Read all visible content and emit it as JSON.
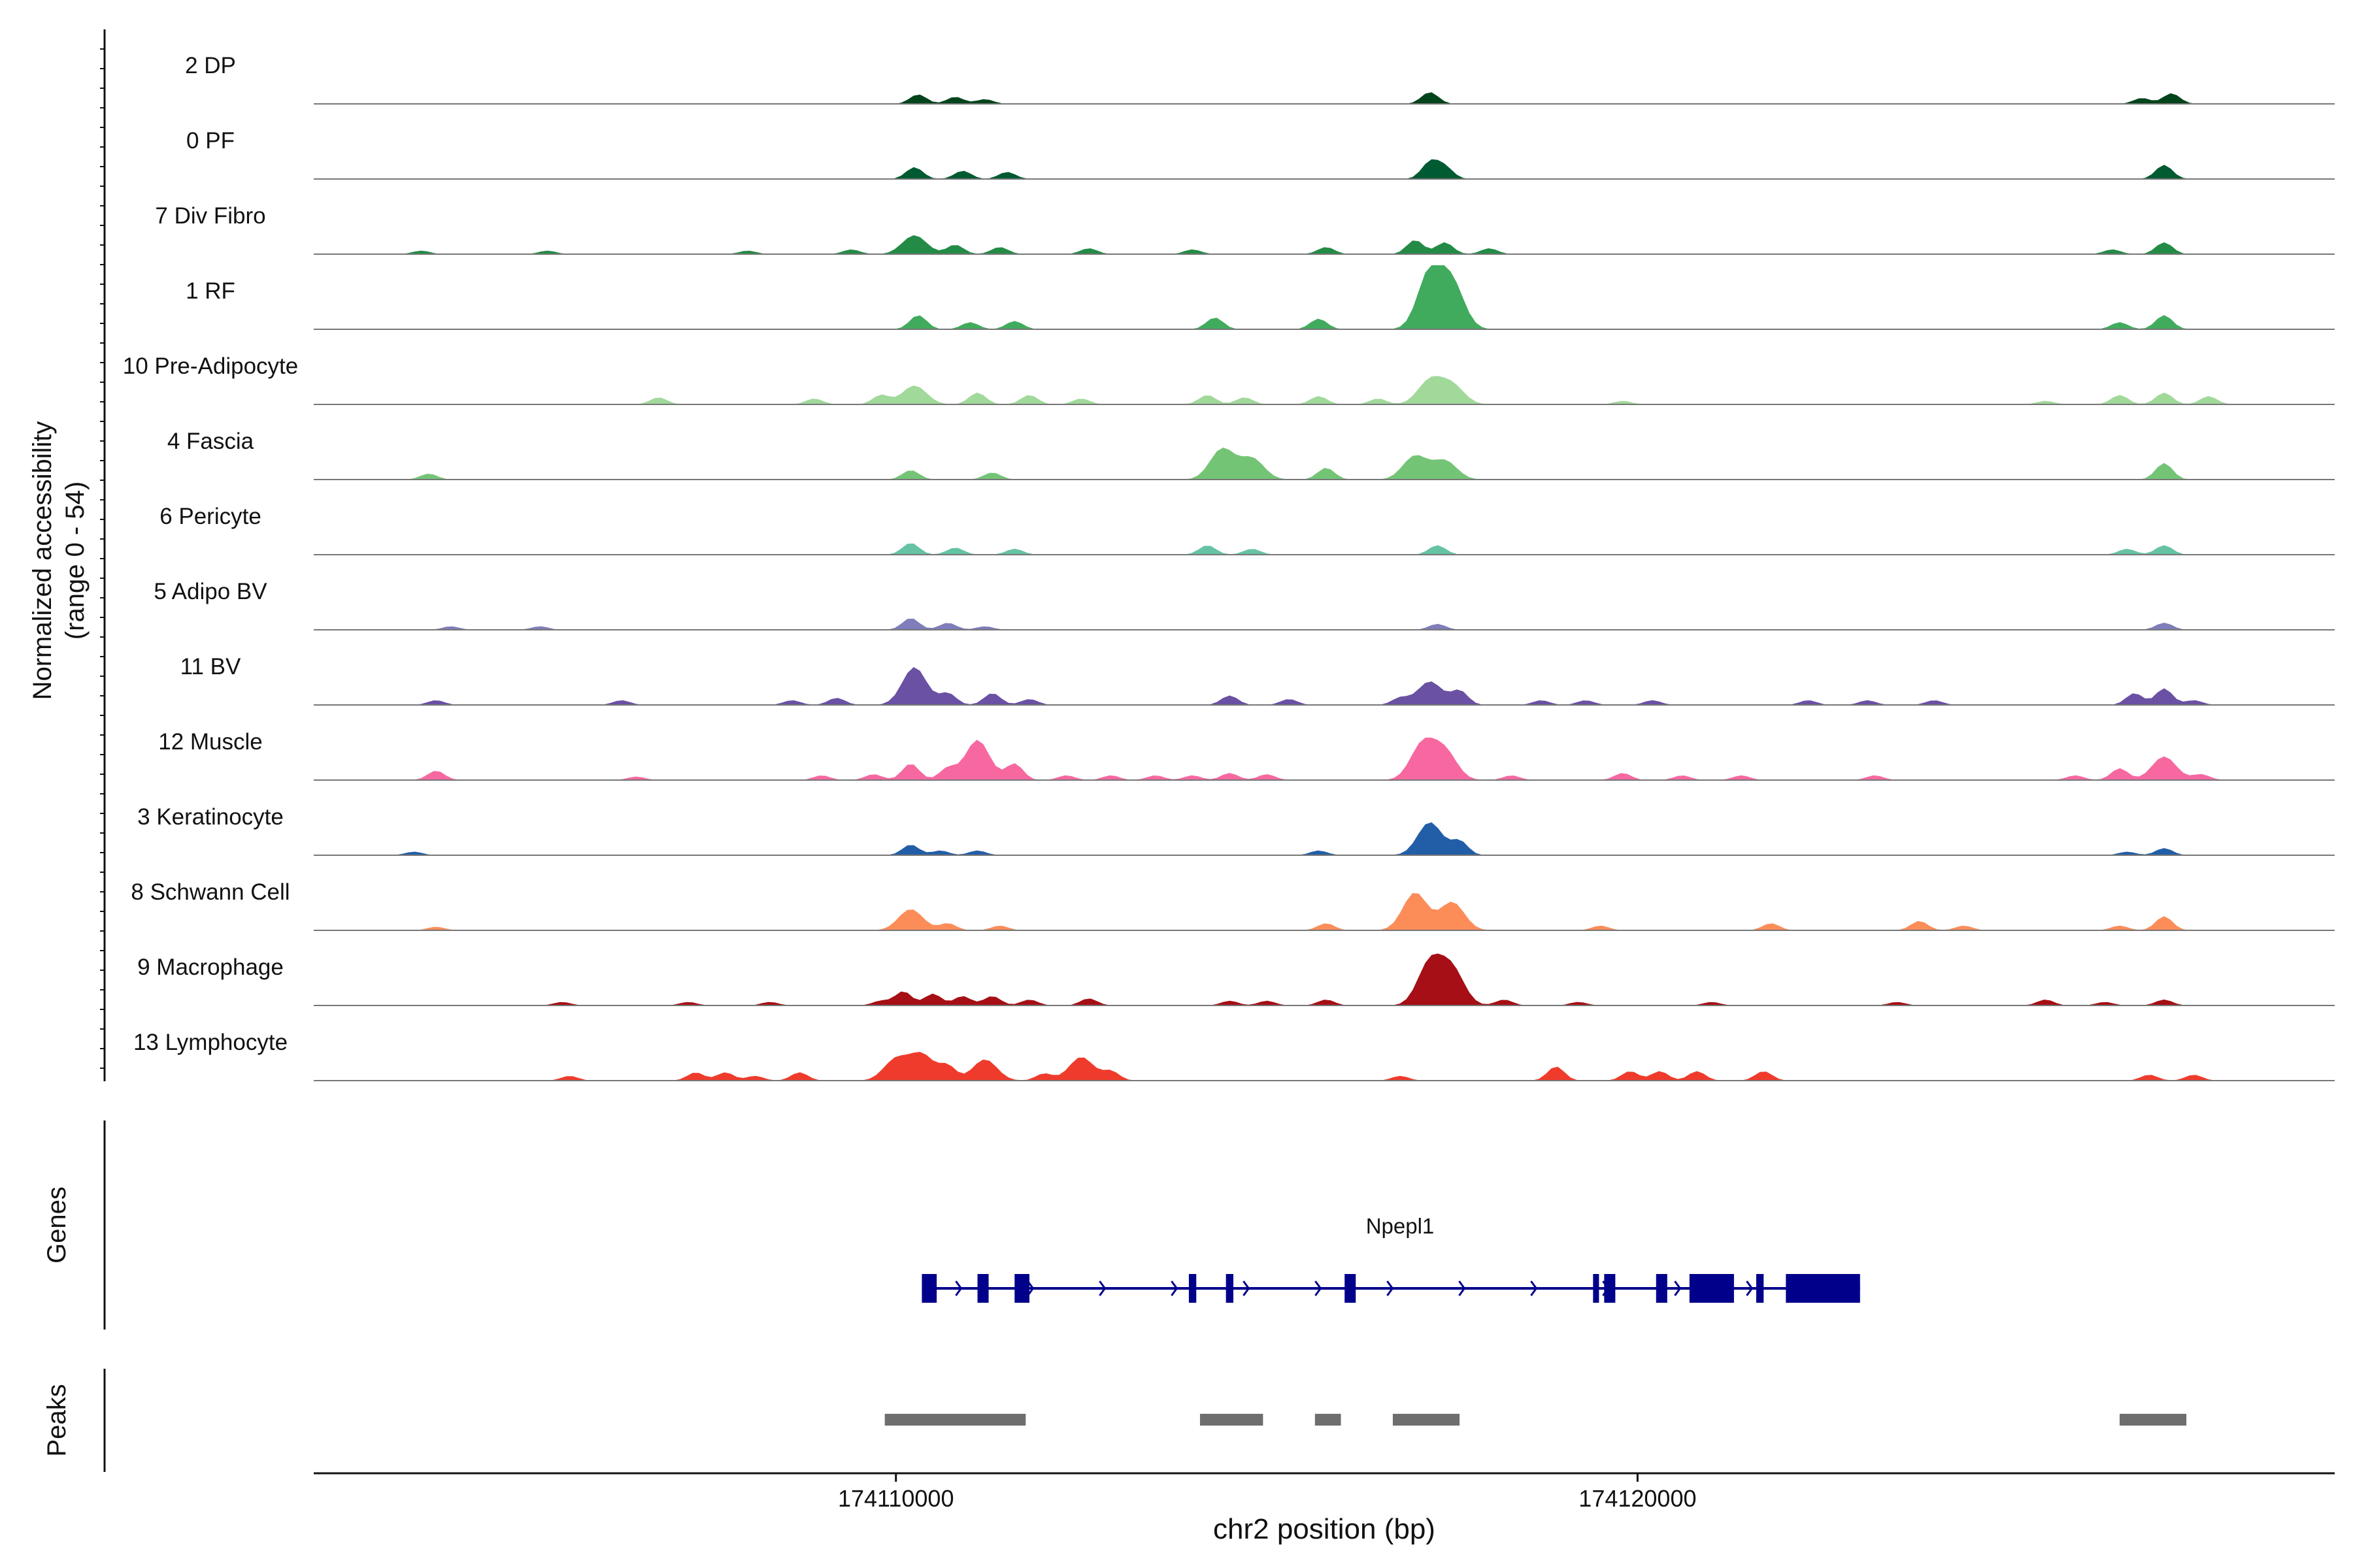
{
  "chart_data": {
    "type": "area",
    "title": "",
    "xlabel": "chr2 position (bp)",
    "ylabel_line1": "Normalized accessibility",
    "ylabel_line2": "(range 0 - 54)",
    "y_range": [
      0,
      54
    ],
    "x_range": [
      174102150,
      174129400
    ],
    "x_ticks": [
      {
        "value": 174110000,
        "label": "174110000"
      },
      {
        "value": 174120000,
        "label": "174120000"
      }
    ],
    "tracks": [
      {
        "name": "2 DP",
        "color": "#00441b",
        "peaks": [
          [
            174110300,
            8
          ],
          [
            174110800,
            6
          ],
          [
            174111200,
            4
          ],
          [
            174117200,
            10
          ],
          [
            174126800,
            5
          ],
          [
            174127200,
            9
          ]
        ]
      },
      {
        "name": "0 PF",
        "color": "#005a32",
        "peaks": [
          [
            174110250,
            10
          ],
          [
            174110900,
            7
          ],
          [
            174111500,
            6
          ],
          [
            174117200,
            14
          ],
          [
            174117400,
            10
          ],
          [
            174127100,
            12
          ]
        ]
      },
      {
        "name": "7 Div Fibro",
        "color": "#238b45",
        "peaks": [
          [
            174103600,
            3
          ],
          [
            174105300,
            3
          ],
          [
            174108000,
            3
          ],
          [
            174109400,
            4
          ],
          [
            174110250,
            16
          ],
          [
            174110800,
            8
          ],
          [
            174111400,
            6
          ],
          [
            174112600,
            5
          ],
          [
            174114000,
            4
          ],
          [
            174115800,
            6
          ],
          [
            174117000,
            12
          ],
          [
            174117400,
            10
          ],
          [
            174118000,
            5
          ],
          [
            174126400,
            4
          ],
          [
            174127100,
            10
          ]
        ]
      },
      {
        "name": "1 RF",
        "color": "#41ab5d",
        "peaks": [
          [
            174110300,
            12
          ],
          [
            174111000,
            6
          ],
          [
            174111600,
            7
          ],
          [
            174114300,
            10
          ],
          [
            174115700,
            9
          ],
          [
            174117200,
            48
          ],
          [
            174117500,
            38
          ],
          [
            174126500,
            6
          ],
          [
            174127100,
            12
          ]
        ]
      },
      {
        "name": "10 Pre-Adipocyte",
        "color": "#a1d99b",
        "peaks": [
          [
            174106800,
            6
          ],
          [
            174108900,
            5
          ],
          [
            174109800,
            8
          ],
          [
            174110250,
            16
          ],
          [
            174111100,
            10
          ],
          [
            174111800,
            8
          ],
          [
            174112500,
            5
          ],
          [
            174114200,
            8
          ],
          [
            174114700,
            6
          ],
          [
            174115700,
            7
          ],
          [
            174116500,
            5
          ],
          [
            174117200,
            20
          ],
          [
            174117500,
            16
          ],
          [
            174119800,
            3
          ],
          [
            174125500,
            3
          ],
          [
            174126500,
            8
          ],
          [
            174127100,
            10
          ],
          [
            174127700,
            7
          ]
        ]
      },
      {
        "name": "4 Fascia",
        "color": "#74c476",
        "peaks": [
          [
            174103700,
            5
          ],
          [
            174110200,
            8
          ],
          [
            174111300,
            6
          ],
          [
            174114400,
            26
          ],
          [
            174114800,
            18
          ],
          [
            174115800,
            10
          ],
          [
            174117000,
            20
          ],
          [
            174117400,
            16
          ],
          [
            174127100,
            14
          ]
        ]
      },
      {
        "name": "6 Pericyte",
        "color": "#66c2a4",
        "peaks": [
          [
            174110200,
            10
          ],
          [
            174110800,
            6
          ],
          [
            174111600,
            5
          ],
          [
            174114200,
            8
          ],
          [
            174114800,
            5
          ],
          [
            174117300,
            8
          ],
          [
            174126600,
            5
          ],
          [
            174127100,
            8
          ]
        ]
      },
      {
        "name": "5 Adipo BV",
        "color": "#807dba",
        "peaks": [
          [
            174104000,
            3
          ],
          [
            174105200,
            3
          ],
          [
            174110200,
            10
          ],
          [
            174110700,
            6
          ],
          [
            174111200,
            3
          ],
          [
            174117300,
            5
          ],
          [
            174127100,
            6
          ]
        ]
      },
      {
        "name": "11 BV",
        "color": "#6a51a3",
        "peaks": [
          [
            174103800,
            4
          ],
          [
            174106300,
            4
          ],
          [
            174108600,
            4
          ],
          [
            174109200,
            6
          ],
          [
            174110250,
            32
          ],
          [
            174110700,
            10
          ],
          [
            174111300,
            10
          ],
          [
            174111800,
            5
          ],
          [
            174114500,
            8
          ],
          [
            174115300,
            5
          ],
          [
            174116800,
            6
          ],
          [
            174117200,
            20
          ],
          [
            174117600,
            12
          ],
          [
            174118700,
            4
          ],
          [
            174119300,
            4
          ],
          [
            174120200,
            4
          ],
          [
            174122300,
            4
          ],
          [
            174123100,
            4
          ],
          [
            174124000,
            4
          ],
          [
            174126700,
            10
          ],
          [
            174127100,
            14
          ],
          [
            174127500,
            4
          ]
        ]
      },
      {
        "name": "12 Muscle",
        "color": "#f768a1",
        "peaks": [
          [
            174103800,
            8
          ],
          [
            174106500,
            3
          ],
          [
            174109000,
            4
          ],
          [
            174109700,
            5
          ],
          [
            174110200,
            14
          ],
          [
            174110700,
            10
          ],
          [
            174111100,
            34
          ],
          [
            174111600,
            14
          ],
          [
            174112300,
            4
          ],
          [
            174112900,
            4
          ],
          [
            174113500,
            4
          ],
          [
            174114000,
            4
          ],
          [
            174114500,
            6
          ],
          [
            174115000,
            5
          ],
          [
            174117100,
            30
          ],
          [
            174117400,
            24
          ],
          [
            174118300,
            4
          ],
          [
            174119800,
            6
          ],
          [
            174120600,
            4
          ],
          [
            174121400,
            4
          ],
          [
            174123200,
            4
          ],
          [
            174125900,
            4
          ],
          [
            174126500,
            10
          ],
          [
            174127100,
            20
          ],
          [
            174127600,
            5
          ]
        ]
      },
      {
        "name": "3 Keratinocyte",
        "color": "#225ea8",
        "peaks": [
          [
            174103500,
            3
          ],
          [
            174110200,
            9
          ],
          [
            174110600,
            4
          ],
          [
            174111100,
            4
          ],
          [
            174115700,
            4
          ],
          [
            174117200,
            28
          ],
          [
            174117600,
            12
          ],
          [
            174126600,
            3
          ],
          [
            174127100,
            6
          ]
        ]
      },
      {
        "name": "8 Schwann Cell",
        "color": "#fc8d59",
        "peaks": [
          [
            174103800,
            3
          ],
          [
            174110200,
            18
          ],
          [
            174110700,
            6
          ],
          [
            174111400,
            4
          ],
          [
            174115800,
            6
          ],
          [
            174117000,
            32
          ],
          [
            174117500,
            24
          ],
          [
            174119500,
            4
          ],
          [
            174121800,
            6
          ],
          [
            174123800,
            8
          ],
          [
            174124400,
            4
          ],
          [
            174126500,
            4
          ],
          [
            174127100,
            12
          ]
        ]
      },
      {
        "name": "9 Macrophage",
        "color": "#a50f15",
        "peaks": [
          [
            174105500,
            3
          ],
          [
            174107200,
            3
          ],
          [
            174108300,
            3
          ],
          [
            174109800,
            4
          ],
          [
            174110100,
            12
          ],
          [
            174110500,
            10
          ],
          [
            174110900,
            8
          ],
          [
            174111300,
            8
          ],
          [
            174111800,
            5
          ],
          [
            174112600,
            6
          ],
          [
            174114500,
            4
          ],
          [
            174115000,
            4
          ],
          [
            174115800,
            5
          ],
          [
            174117200,
            36
          ],
          [
            174117500,
            30
          ],
          [
            174118200,
            5
          ],
          [
            174119200,
            3
          ],
          [
            174121000,
            3
          ],
          [
            174123500,
            3
          ],
          [
            174125500,
            5
          ],
          [
            174126300,
            3
          ],
          [
            174127100,
            5
          ]
        ]
      },
      {
        "name": "13 Lymphocyte",
        "color": "#ef3b2c",
        "peaks": [
          [
            174105600,
            4
          ],
          [
            174107300,
            7
          ],
          [
            174107700,
            7
          ],
          [
            174108100,
            4
          ],
          [
            174108700,
            7
          ],
          [
            174110000,
            18
          ],
          [
            174110350,
            22
          ],
          [
            174110700,
            12
          ],
          [
            174111200,
            18
          ],
          [
            174112000,
            6
          ],
          [
            174112500,
            20
          ],
          [
            174112900,
            8
          ],
          [
            174116800,
            4
          ],
          [
            174118900,
            12
          ],
          [
            174119900,
            8
          ],
          [
            174120300,
            8
          ],
          [
            174120800,
            8
          ],
          [
            174121700,
            8
          ],
          [
            174126900,
            5
          ],
          [
            174127500,
            5
          ]
        ]
      }
    ],
    "gene_track_label": "Genes",
    "gene": {
      "name": "Npepl1",
      "start": 174110350,
      "end": 174123000,
      "strand": "+",
      "exons": [
        [
          174110350,
          174110550
        ],
        [
          174111100,
          174111250
        ],
        [
          174111600,
          174111800
        ],
        [
          174113950,
          174114050
        ],
        [
          174114450,
          174114550
        ],
        [
          174116050,
          174116200
        ],
        [
          174119400,
          174119480
        ],
        [
          174119550,
          174119700
        ],
        [
          174120250,
          174120400
        ],
        [
          174120700,
          174121300
        ],
        [
          174121600,
          174121700
        ],
        [
          174122000,
          174123000
        ]
      ]
    },
    "peaks_track_label": "Peaks",
    "peak_regions": [
      [
        174109850,
        174111750
      ],
      [
        174114100,
        174114950
      ],
      [
        174115650,
        174116000
      ],
      [
        174116700,
        174117600
      ],
      [
        174126500,
        174127400
      ]
    ]
  }
}
